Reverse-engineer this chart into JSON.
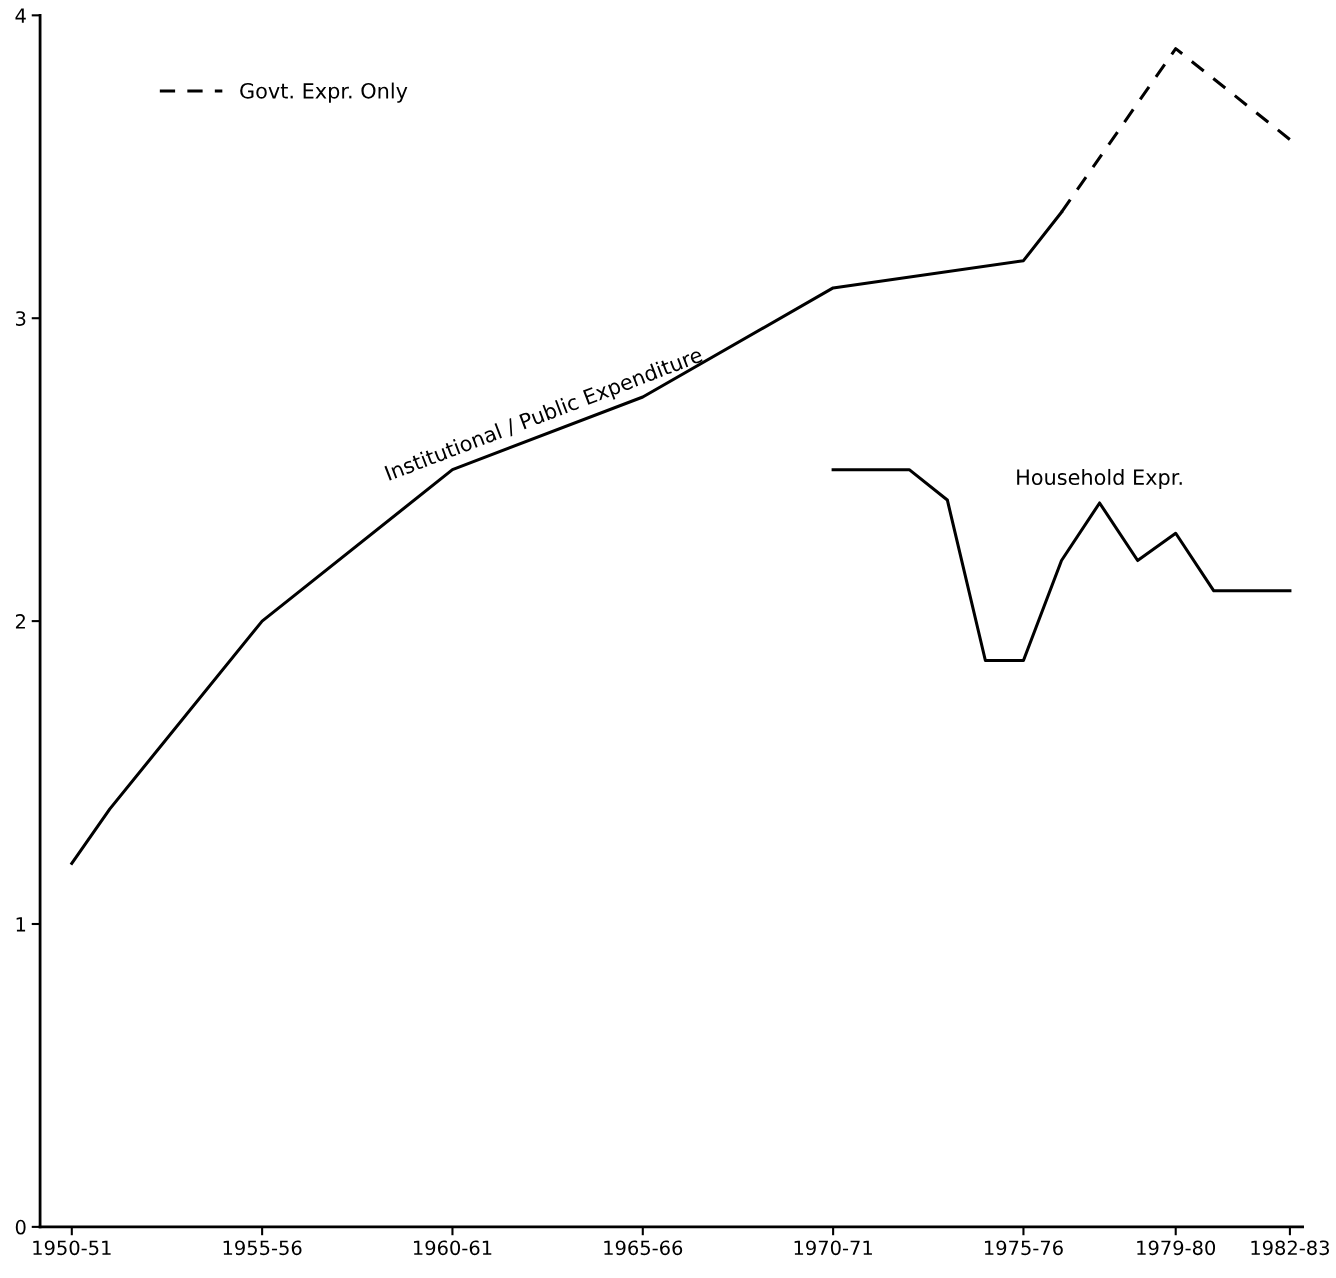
{
  "chart_data": {
    "type": "line",
    "series": [
      {
        "name": "Institutional / Public Expenditure",
        "color": "#000000",
        "line_style": "solid",
        "x": [
          "1950",
          "1951",
          "1955",
          "1960",
          "1965",
          "1970",
          "1975",
          "1976"
        ],
        "values": [
          1.2,
          1.38,
          2.0,
          2.5,
          2.74,
          3.1,
          3.19,
          3.35
        ]
      },
      {
        "name": "Govt. Expr. Only",
        "color": "#000000",
        "line_style": "dashed",
        "x": [
          "1976",
          "1979",
          "1982"
        ],
        "values": [
          3.35,
          3.89,
          3.59
        ]
      },
      {
        "name": "Household Expr.",
        "color": "#000000",
        "line_style": "solid",
        "x": [
          "1970",
          "1972",
          "1973",
          "1974",
          "1975",
          "1976",
          "1977",
          "1978",
          "1979",
          "1980",
          "1982"
        ],
        "values": [
          2.5,
          2.5,
          2.4,
          1.87,
          1.87,
          2.2,
          2.39,
          2.2,
          2.29,
          2.1,
          2.1
        ]
      }
    ],
    "xlim": [
      "1949-03",
      "1982-05"
    ],
    "xticks": [
      {
        "value": "1950",
        "label": "1950-51"
      },
      {
        "value": "1955",
        "label": "1955-56"
      },
      {
        "value": "1960",
        "label": "1960-61"
      },
      {
        "value": "1965",
        "label": "1965-66"
      },
      {
        "value": "1970",
        "label": "1970-71"
      },
      {
        "value": "1975",
        "label": "1975-76"
      },
      {
        "value": "1979",
        "label": "1979-80"
      },
      {
        "value": "1982",
        "label": "1982-83"
      }
    ],
    "ylim": [
      0,
      4
    ],
    "yticks": [
      0,
      1,
      2,
      3,
      4
    ],
    "grid": false,
    "legend": "top left",
    "marker": "none"
  }
}
